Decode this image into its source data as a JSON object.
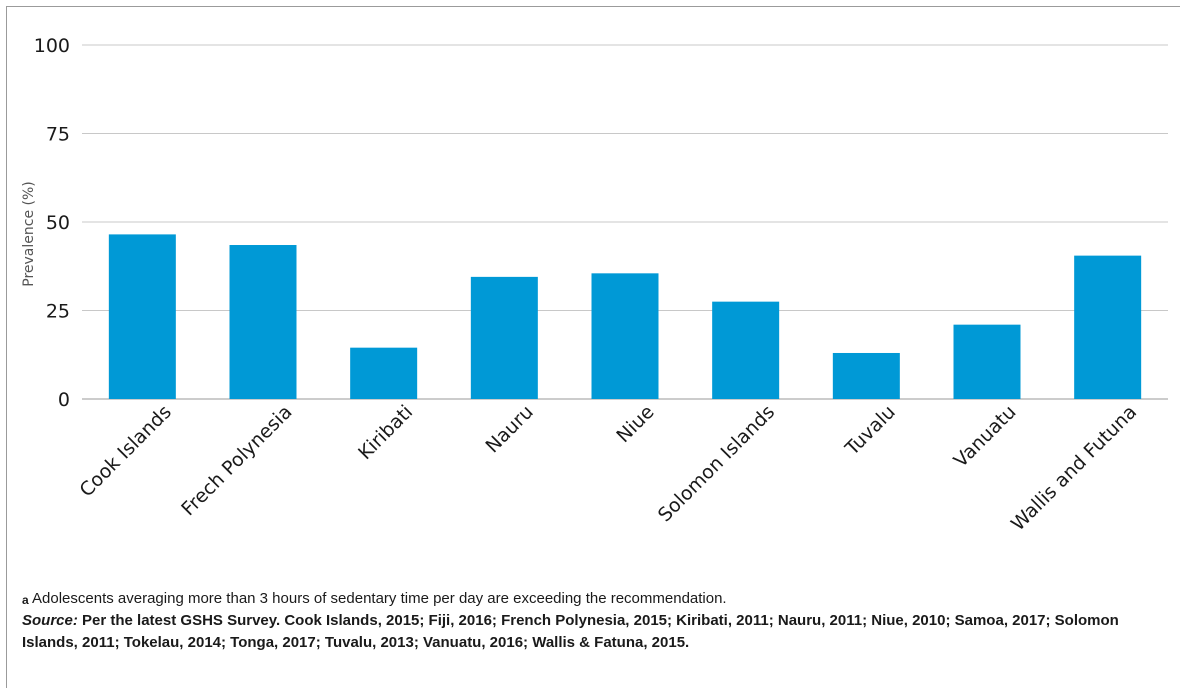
{
  "chart_data": {
    "type": "bar",
    "title": "",
    "xlabel": "",
    "ylabel": "Prevalence (%)",
    "ylim": [
      0,
      100
    ],
    "yticks": [
      0,
      25,
      50,
      75,
      100
    ],
    "grid": true,
    "categories": [
      "Cook Islands",
      "Frech Polynesia",
      "Kiribati",
      "Nauru",
      "Niue",
      "Solomon Islands",
      "Tuvalu",
      "Vanuatu",
      "Wallis and Futuna"
    ],
    "values": [
      46.5,
      43.5,
      14.5,
      34.5,
      35.5,
      27.5,
      13,
      21,
      40.5
    ],
    "bar_color": "#0099d6",
    "gridline_color": "#c8c8c8"
  },
  "notes": {
    "footnote_marker": "a",
    "footnote": "Adolescents averaging more than 3 hours of sedentary time per day are exceeding the recommendation.",
    "source_label": "Source:",
    "source_text": "Per the latest GSHS Survey. Cook Islands, 2015; Fiji, 2016; French Polynesia, 2015; Kiribati, 2011; Nauru, 2011; Niue, 2010; Samoa, 2017; Solomon Islands, 2011; Tokelau, 2014; Tonga, 2017; Tuvalu, 2013; Vanuatu, 2016; Wallis & Fatuna, 2015."
  }
}
